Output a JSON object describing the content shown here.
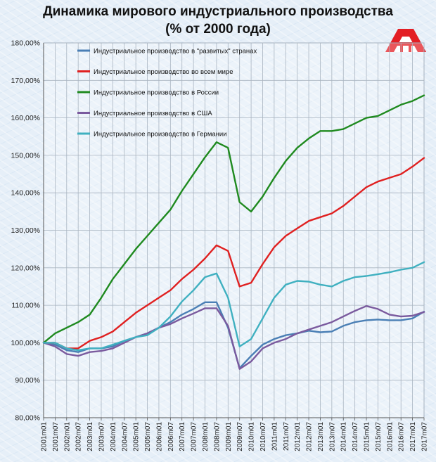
{
  "chart_data": {
    "type": "line",
    "title": "Динамика мирового индустриального производства",
    "subtitle": "(% от 2000 года)",
    "ylim": [
      80,
      180
    ],
    "yticks": [
      "80,00%",
      "90,00%",
      "100,00%",
      "110,00%",
      "120,00%",
      "130,00%",
      "140,00%",
      "150,00%",
      "160,00%",
      "170,00%",
      "180,00%"
    ],
    "xticks": [
      "2001m01",
      "2001m07",
      "2002m01",
      "2002m07",
      "2003m01",
      "2003m07",
      "2004m01",
      "2004m07",
      "2005m01",
      "2005m07",
      "2006m01",
      "2006m07",
      "2007m01",
      "2007m07",
      "2008m01",
      "2008m07",
      "2009m01",
      "2009m07",
      "2010m01",
      "2010m07",
      "2011m01",
      "2011m07",
      "2012m01",
      "2012m07",
      "2013m01",
      "2013m07",
      "2014m01",
      "2014m07",
      "2015m01",
      "2015m07",
      "2016m01",
      "2016m07",
      "2017m01",
      "2017m07"
    ],
    "legend_position": "top-left",
    "grid": true,
    "series": [
      {
        "name": "Индустриальное производство в \"развитых\" странах",
        "color": "#4a7fb5",
        "points": [
          [
            "2001m01",
            100
          ],
          [
            "2001m07",
            99.5
          ],
          [
            "2002m01",
            98
          ],
          [
            "2002m07",
            97.5
          ],
          [
            "2003m01",
            98.5
          ],
          [
            "2003m07",
            98.5
          ],
          [
            "2004m01",
            99
          ],
          [
            "2004m07",
            100.5
          ],
          [
            "2005m01",
            101.5
          ],
          [
            "2005m07",
            102.5
          ],
          [
            "2006m01",
            104
          ],
          [
            "2006m07",
            105.5
          ],
          [
            "2007m01",
            107.5
          ],
          [
            "2007m07",
            109
          ],
          [
            "2008m01",
            110.8
          ],
          [
            "2008m07",
            110.8
          ],
          [
            "2009m01",
            104
          ],
          [
            "2009m07",
            93.2
          ],
          [
            "2010m01",
            96.5
          ],
          [
            "2010m07",
            99.5
          ],
          [
            "2011m01",
            101
          ],
          [
            "2011m07",
            102
          ],
          [
            "2012m01",
            102.5
          ],
          [
            "2012m07",
            103.2
          ],
          [
            "2013m01",
            102.8
          ],
          [
            "2013m07",
            103
          ],
          [
            "2014m01",
            104.5
          ],
          [
            "2014m07",
            105.5
          ],
          [
            "2015m01",
            106
          ],
          [
            "2015m07",
            106.2
          ],
          [
            "2016m01",
            106
          ],
          [
            "2016m07",
            106
          ],
          [
            "2017m01",
            106.5
          ],
          [
            "2017m07",
            108.3
          ]
        ]
      },
      {
        "name": "Индустриальное производство во всем мире",
        "color": "#e02020",
        "points": [
          [
            "2001m01",
            100
          ],
          [
            "2001m07",
            100
          ],
          [
            "2002m01",
            98.5
          ],
          [
            "2002m07",
            98.5
          ],
          [
            "2003m01",
            100.5
          ],
          [
            "2003m07",
            101.5
          ],
          [
            "2004m01",
            103
          ],
          [
            "2004m07",
            105.5
          ],
          [
            "2005m01",
            108
          ],
          [
            "2005m07",
            110
          ],
          [
            "2006m01",
            112
          ],
          [
            "2006m07",
            114
          ],
          [
            "2007m01",
            117
          ],
          [
            "2007m07",
            119.5
          ],
          [
            "2008m01",
            122.5
          ],
          [
            "2008m07",
            126
          ],
          [
            "2009m01",
            124.5
          ],
          [
            "2009m07",
            115
          ],
          [
            "2010m01",
            116
          ],
          [
            "2010m07",
            121
          ],
          [
            "2011m01",
            125.5
          ],
          [
            "2011m07",
            128.5
          ],
          [
            "2012m01",
            130.5
          ],
          [
            "2012m07",
            132.5
          ],
          [
            "2013m01",
            133.5
          ],
          [
            "2013m07",
            134.5
          ],
          [
            "2014m01",
            136.5
          ],
          [
            "2014m07",
            139
          ],
          [
            "2015m01",
            141.5
          ],
          [
            "2015m07",
            143
          ],
          [
            "2016m01",
            144
          ],
          [
            "2016m07",
            145
          ],
          [
            "2017m01",
            147
          ],
          [
            "2017m07",
            149.3
          ]
        ]
      },
      {
        "name": "Индустриальное производство в России",
        "color": "#1f8a1f",
        "points": [
          [
            "2001m01",
            100
          ],
          [
            "2001m07",
            102.5
          ],
          [
            "2002m01",
            104
          ],
          [
            "2002m07",
            105.5
          ],
          [
            "2003m01",
            107.5
          ],
          [
            "2003m07",
            112
          ],
          [
            "2004m01",
            117
          ],
          [
            "2004m07",
            121
          ],
          [
            "2005m01",
            125
          ],
          [
            "2005m07",
            128.5
          ],
          [
            "2006m01",
            132
          ],
          [
            "2006m07",
            135.5
          ],
          [
            "2007m01",
            140.5
          ],
          [
            "2007m07",
            145
          ],
          [
            "2008m01",
            149.5
          ],
          [
            "2008m07",
            153.5
          ],
          [
            "2009m01",
            152
          ],
          [
            "2009m07",
            137.5
          ],
          [
            "2010m01",
            135
          ],
          [
            "2010m07",
            139
          ],
          [
            "2011m01",
            144
          ],
          [
            "2011m07",
            148.5
          ],
          [
            "2012m01",
            152
          ],
          [
            "2012m07",
            154.5
          ],
          [
            "2013m01",
            156.5
          ],
          [
            "2013m07",
            156.5
          ],
          [
            "2014m01",
            157
          ],
          [
            "2014m07",
            158.5
          ],
          [
            "2015m01",
            160
          ],
          [
            "2015m07",
            160.5
          ],
          [
            "2016m01",
            162
          ],
          [
            "2016m07",
            163.5
          ],
          [
            "2017m01",
            164.5
          ],
          [
            "2017m07",
            166
          ]
        ]
      },
      {
        "name": "Индустриальное производство в США",
        "color": "#7a5a9e",
        "points": [
          [
            "2001m01",
            100
          ],
          [
            "2001m07",
            99
          ],
          [
            "2002m01",
            97
          ],
          [
            "2002m07",
            96.5
          ],
          [
            "2003m01",
            97.5
          ],
          [
            "2003m07",
            97.8
          ],
          [
            "2004m01",
            98.5
          ],
          [
            "2004m07",
            100
          ],
          [
            "2005m01",
            101.5
          ],
          [
            "2005m07",
            102.5
          ],
          [
            "2006m01",
            104
          ],
          [
            "2006m07",
            105
          ],
          [
            "2007m01",
            106.5
          ],
          [
            "2007m07",
            107.8
          ],
          [
            "2008m01",
            109.2
          ],
          [
            "2008m07",
            109.2
          ],
          [
            "2009m01",
            104.5
          ],
          [
            "2009m07",
            93
          ],
          [
            "2010m01",
            95
          ],
          [
            "2010m07",
            98.5
          ],
          [
            "2011m01",
            100
          ],
          [
            "2011m07",
            101
          ],
          [
            "2012m01",
            102.5
          ],
          [
            "2012m07",
            103.5
          ],
          [
            "2013m01",
            104.5
          ],
          [
            "2013m07",
            105.5
          ],
          [
            "2014m01",
            107
          ],
          [
            "2014m07",
            108.5
          ],
          [
            "2015m01",
            109.8
          ],
          [
            "2015m07",
            109
          ],
          [
            "2016m01",
            107.5
          ],
          [
            "2016m07",
            107
          ],
          [
            "2017m01",
            107.2
          ],
          [
            "2017m07",
            108.2
          ]
        ]
      },
      {
        "name": "Индустриальное производство в Германии",
        "color": "#3fb0c0",
        "points": [
          [
            "2001m01",
            100
          ],
          [
            "2001m07",
            100
          ],
          [
            "2002m01",
            98.5
          ],
          [
            "2002m07",
            98
          ],
          [
            "2003m01",
            98.5
          ],
          [
            "2003m07",
            98.5
          ],
          [
            "2004m01",
            99.5
          ],
          [
            "2004m07",
            100.5
          ],
          [
            "2005m01",
            101.5
          ],
          [
            "2005m07",
            102
          ],
          [
            "2006m01",
            104
          ],
          [
            "2006m07",
            107
          ],
          [
            "2007m01",
            111
          ],
          [
            "2007m07",
            114
          ],
          [
            "2008m01",
            117.5
          ],
          [
            "2008m07",
            118.5
          ],
          [
            "2009m01",
            112
          ],
          [
            "2009m07",
            99
          ],
          [
            "2010m01",
            101
          ],
          [
            "2010m07",
            106.5
          ],
          [
            "2011m01",
            112
          ],
          [
            "2011m07",
            115.5
          ],
          [
            "2012m01",
            116.5
          ],
          [
            "2012m07",
            116.3
          ],
          [
            "2013m01",
            115.5
          ],
          [
            "2013m07",
            115
          ],
          [
            "2014m01",
            116.5
          ],
          [
            "2014m07",
            117.5
          ],
          [
            "2015m01",
            117.8
          ],
          [
            "2015m07",
            118.3
          ],
          [
            "2016m01",
            118.8
          ],
          [
            "2016m07",
            119.5
          ],
          [
            "2017m01",
            120
          ],
          [
            "2017m07",
            121.5
          ]
        ]
      }
    ]
  },
  "logo": {
    "primary_color": "#e31e24",
    "secondary_color": "#ffffff"
  }
}
